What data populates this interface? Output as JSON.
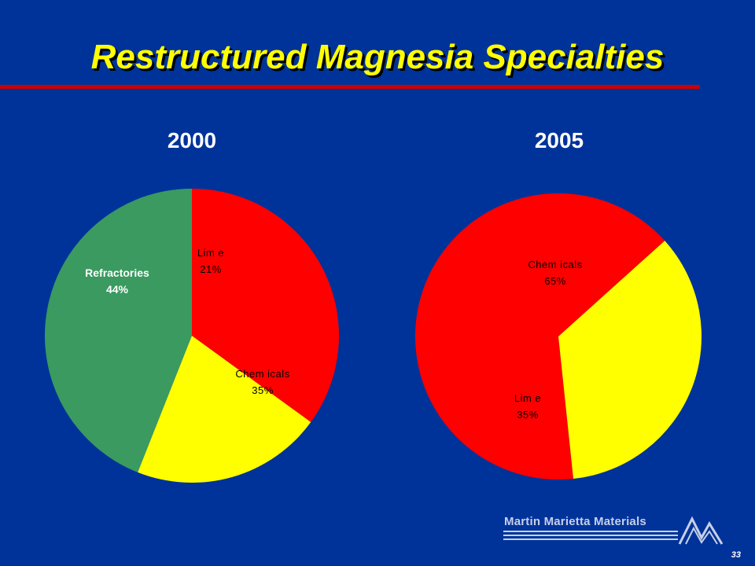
{
  "title": "Restructured Magnesia Specialties",
  "colors": {
    "background": "#003399",
    "title": "#ffff00",
    "rule": "#cc0000",
    "Refractories": "#3a9a60",
    "Lime": "#ffff00",
    "Chemicals": "#ff0000"
  },
  "chart_data": [
    {
      "type": "pie",
      "title": "2000",
      "slices": [
        {
          "label": "Refractories",
          "value": 44,
          "value_label": "44%"
        },
        {
          "label": "Lim e",
          "value": 21,
          "value_label": "21%"
        },
        {
          "label": "Chem icals",
          "value": 35,
          "value_label": "35%"
        }
      ]
    },
    {
      "type": "pie",
      "title": "2005",
      "slices": [
        {
          "label": "Chem icals",
          "value": 65,
          "value_label": "65%"
        },
        {
          "label": "Lim e",
          "value": 35,
          "value_label": "35%"
        }
      ]
    }
  ],
  "footer": {
    "company": "Martin Marietta Materials",
    "page_number": "33",
    "logo_icon": "mountain-peaks-icon"
  }
}
